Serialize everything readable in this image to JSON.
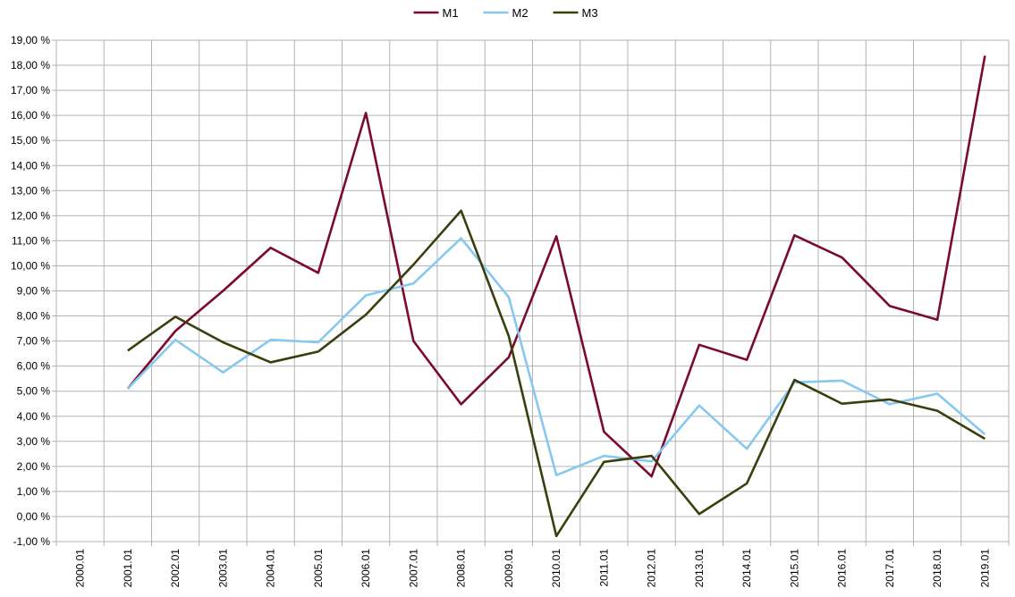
{
  "chart_data": {
    "type": "line",
    "categories": [
      "2000.01",
      "2001.01",
      "2002.01",
      "2003.01",
      "2004.01",
      "2005.01",
      "2006.01",
      "2007.01",
      "2008.01",
      "2009.01",
      "2010.01",
      "2011.01",
      "2012.01",
      "2013.01",
      "2014.01",
      "2015.01",
      "2016.01",
      "2017.01",
      "2018.01",
      "2019.01"
    ],
    "series": [
      {
        "name": "M1",
        "color": "#7b0b2c",
        "values": [
          null,
          5.1,
          7.4,
          9.0,
          10.72,
          9.72,
          16.1,
          7.0,
          4.48,
          6.35,
          11.18,
          3.38,
          1.6,
          6.85,
          6.25,
          11.22,
          10.33,
          8.4,
          7.85,
          18.38
        ]
      },
      {
        "name": "M2",
        "color": "#87c8f0",
        "values": [
          null,
          5.1,
          7.05,
          5.75,
          7.05,
          6.95,
          8.82,
          9.3,
          11.1,
          8.75,
          1.65,
          2.42,
          2.2,
          4.43,
          2.7,
          5.35,
          5.42,
          4.48,
          4.9,
          3.28
        ]
      },
      {
        "name": "M3",
        "color": "#3b3f0e",
        "values": [
          null,
          6.62,
          7.97,
          6.95,
          6.15,
          6.58,
          8.05,
          10.05,
          12.2,
          7.2,
          -0.78,
          2.18,
          2.42,
          0.1,
          1.32,
          5.45,
          4.5,
          4.67,
          4.22,
          3.1
        ]
      }
    ],
    "yticks": [
      "-1,00 %",
      "0,00 %",
      "1,00 %",
      "2,00 %",
      "3,00 %",
      "4,00 %",
      "5,00 %",
      "6,00 %",
      "7,00 %",
      "8,00 %",
      "9,00 %",
      "10,00 %",
      "11,00 %",
      "12,00 %",
      "13,00 %",
      "14,00 %",
      "15,00 %",
      "16,00 %",
      "17,00 %",
      "18,00 %",
      "19,00 %"
    ],
    "ylim": [
      -1,
      19
    ],
    "grid": true,
    "legend": "top-center"
  }
}
